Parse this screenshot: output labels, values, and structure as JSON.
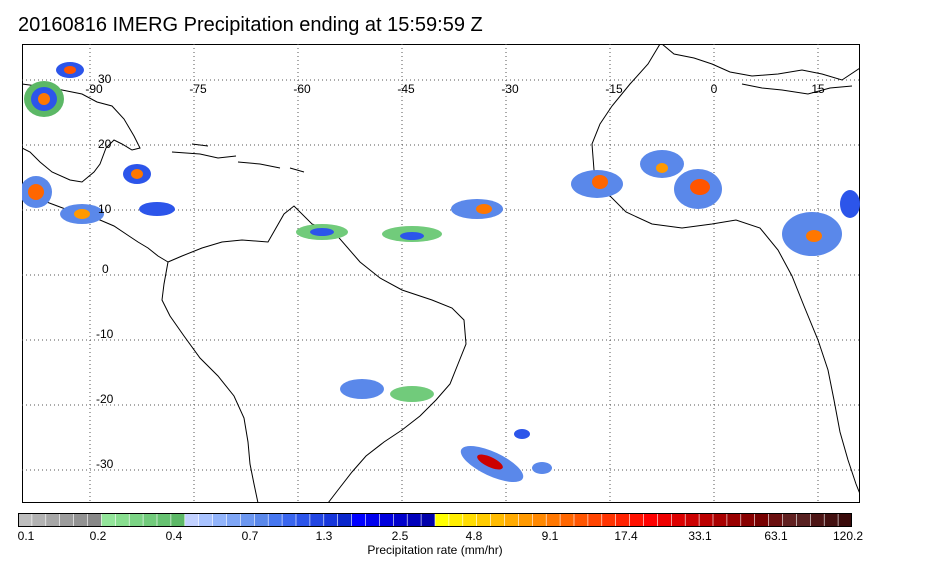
{
  "title": "20160816 IMERG Precipitation ending at 15:59:59 Z",
  "map": {
    "lon_labels": [
      "-90",
      "-75",
      "-60",
      "-45",
      "-30",
      "-15",
      "0",
      "15"
    ],
    "lat_labels": [
      "30",
      "20",
      "10",
      "0",
      "-10",
      "-20",
      "-30"
    ],
    "background_color": "#ffffff",
    "grid": "dotted",
    "coastline_color": "#000000"
  },
  "colorbar": {
    "title": "Precipitation rate (mm/hr)",
    "labels": [
      "0.1",
      "0.2",
      "0.4",
      "0.7",
      "1.3",
      "2.5",
      "4.8",
      "9.1",
      "17.4",
      "33.1",
      "63.1",
      "120.2"
    ],
    "colors": [
      "#bdbdbd",
      "#b2b2b2",
      "#a7a7a7",
      "#9c9c9c",
      "#929292",
      "#888888",
      "#93e59a",
      "#88de8f",
      "#7cd485",
      "#71cb7b",
      "#66c271",
      "#5cb866",
      "#c2d1ff",
      "#a9c3ff",
      "#92b4fb",
      "#7fa6f6",
      "#6c97f0",
      "#5a88ea",
      "#4777f0",
      "#3a66ee",
      "#2c55ea",
      "#2145e2",
      "#1636db",
      "#0a26cc",
      "#0000ff",
      "#0000ee",
      "#0000dd",
      "#0000cc",
      "#0000bb",
      "#0000aa",
      "#ffff00",
      "#ffee00",
      "#ffdd00",
      "#ffcc00",
      "#ffbb00",
      "#ffaa00",
      "#ff9900",
      "#ff8800",
      "#ff7700",
      "#ff6600",
      "#ff5500",
      "#ff4400",
      "#ff3300",
      "#ff2200",
      "#ff1100",
      "#ff0000",
      "#ee0000",
      "#dd0000",
      "#cc0000",
      "#bb0000",
      "#aa0000",
      "#990000",
      "#880000",
      "#770000",
      "#6b1010",
      "#612020",
      "#572020",
      "#4d1515",
      "#431010",
      "#390a0a"
    ]
  }
}
